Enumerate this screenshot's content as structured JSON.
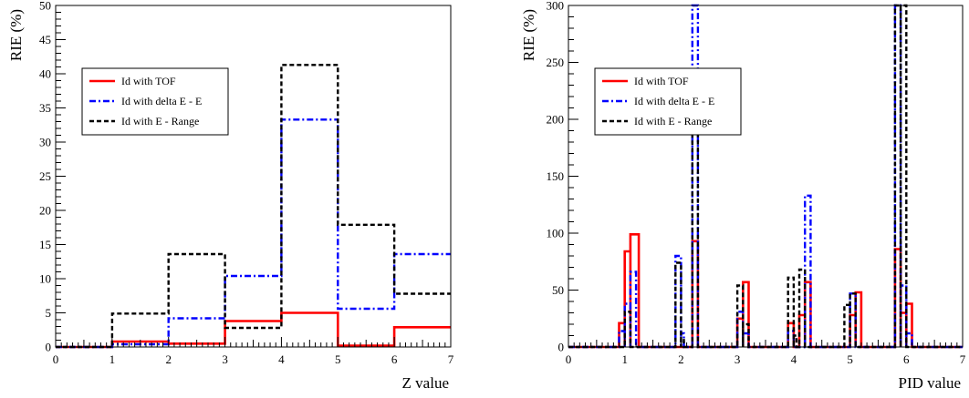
{
  "colors": {
    "tof": "#ff0000",
    "dee": "#0000ff",
    "erange": "#000000"
  },
  "chart_data": [
    {
      "type": "line",
      "step": true,
      "xlabel": "Z value",
      "ylabel": "RIE (%)",
      "xlim": [
        0,
        7
      ],
      "ylim": [
        0,
        50
      ],
      "xticks": [
        "0",
        "1",
        "2",
        "3",
        "4",
        "5",
        "6",
        "7"
      ],
      "yticks": [
        "0",
        "5",
        "10",
        "15",
        "20",
        "25",
        "30",
        "35",
        "40",
        "45",
        "50"
      ],
      "legend": {
        "position": "upper-left",
        "entries": [
          "Id with TOF",
          "Id with delta E - E",
          "Id with E - Range"
        ]
      },
      "x_bin_edges": [
        0,
        1,
        2,
        3,
        4,
        5,
        6,
        7
      ],
      "series": [
        {
          "name": "Id with TOF",
          "color": "#ff0000",
          "style": "solid",
          "values": [
            0,
            0.8,
            0.5,
            3.8,
            5.0,
            0.2,
            2.9
          ]
        },
        {
          "name": "Id with delta E - E",
          "color": "#0000ff",
          "style": "dashdot",
          "values": [
            0,
            0.4,
            4.2,
            10.4,
            33.3,
            5.6,
            13.6
          ]
        },
        {
          "name": "Id with E - Range",
          "color": "#000000",
          "style": "dashed",
          "values": [
            0,
            4.9,
            13.6,
            2.8,
            41.3,
            17.9,
            7.8
          ]
        }
      ]
    },
    {
      "type": "line",
      "step": true,
      "xlabel": "PID value",
      "ylabel": "RIE (%)",
      "xlim": [
        0,
        7
      ],
      "ylim": [
        0,
        300
      ],
      "xticks": [
        "0",
        "1",
        "2",
        "3",
        "4",
        "5",
        "6",
        "7"
      ],
      "yticks": [
        "0",
        "50",
        "100",
        "150",
        "200",
        "250",
        "300"
      ],
      "legend": {
        "position": "upper-left",
        "entries": [
          "Id with TOF",
          "Id with delta E - E",
          "Id with E - Range"
        ]
      },
      "series": [
        {
          "name": "Id with TOF",
          "color": "#ff0000",
          "style": "solid",
          "peaks": [
            [
              0.9,
              1.0,
              21
            ],
            [
              1.0,
              1.1,
              84
            ],
            [
              1.1,
              1.25,
              99
            ],
            [
              2.2,
              2.3,
              93
            ],
            [
              3.0,
              3.1,
              25
            ],
            [
              3.1,
              3.2,
              57
            ],
            [
              3.9,
              4.0,
              21
            ],
            [
              4.1,
              4.2,
              28
            ],
            [
              4.2,
              4.3,
              57
            ],
            [
              5.0,
              5.1,
              28
            ],
            [
              5.1,
              5.2,
              48
            ],
            [
              5.8,
              5.9,
              86
            ],
            [
              5.9,
              6.0,
              30
            ],
            [
              6.0,
              6.1,
              38
            ]
          ]
        },
        {
          "name": "Id with delta E - E",
          "color": "#0000ff",
          "style": "dashdot",
          "peaks": [
            [
              0.9,
              1.0,
              14
            ],
            [
              1.0,
              1.1,
              38
            ],
            [
              1.1,
              1.2,
              66
            ],
            [
              1.9,
              2.0,
              80
            ],
            [
              2.0,
              2.05,
              12
            ],
            [
              2.2,
              2.3,
              300
            ],
            [
              3.0,
              3.1,
              31
            ],
            [
              3.1,
              3.2,
              12
            ],
            [
              3.9,
              4.0,
              14
            ],
            [
              4.2,
              4.3,
              133
            ],
            [
              5.0,
              5.1,
              47
            ],
            [
              5.8,
              5.9,
              300
            ],
            [
              5.9,
              6.0,
              54
            ],
            [
              6.0,
              6.1,
              12
            ]
          ]
        },
        {
          "name": "Id with E - Range",
          "color": "#000000",
          "style": "dashed",
          "peaks": [
            [
              1.0,
              1.1,
              31
            ],
            [
              1.9,
              2.0,
              74
            ],
            [
              2.0,
              2.05,
              8
            ],
            [
              2.2,
              2.3,
              190
            ],
            [
              3.0,
              3.1,
              54
            ],
            [
              3.1,
              3.2,
              20
            ],
            [
              3.9,
              4.0,
              61
            ],
            [
              4.0,
              4.05,
              10
            ],
            [
              4.1,
              4.2,
              68
            ],
            [
              4.9,
              5.0,
              37
            ],
            [
              5.0,
              5.1,
              47
            ],
            [
              5.8,
              5.9,
              300
            ],
            [
              5.9,
              6.0,
              300
            ]
          ]
        }
      ]
    }
  ]
}
